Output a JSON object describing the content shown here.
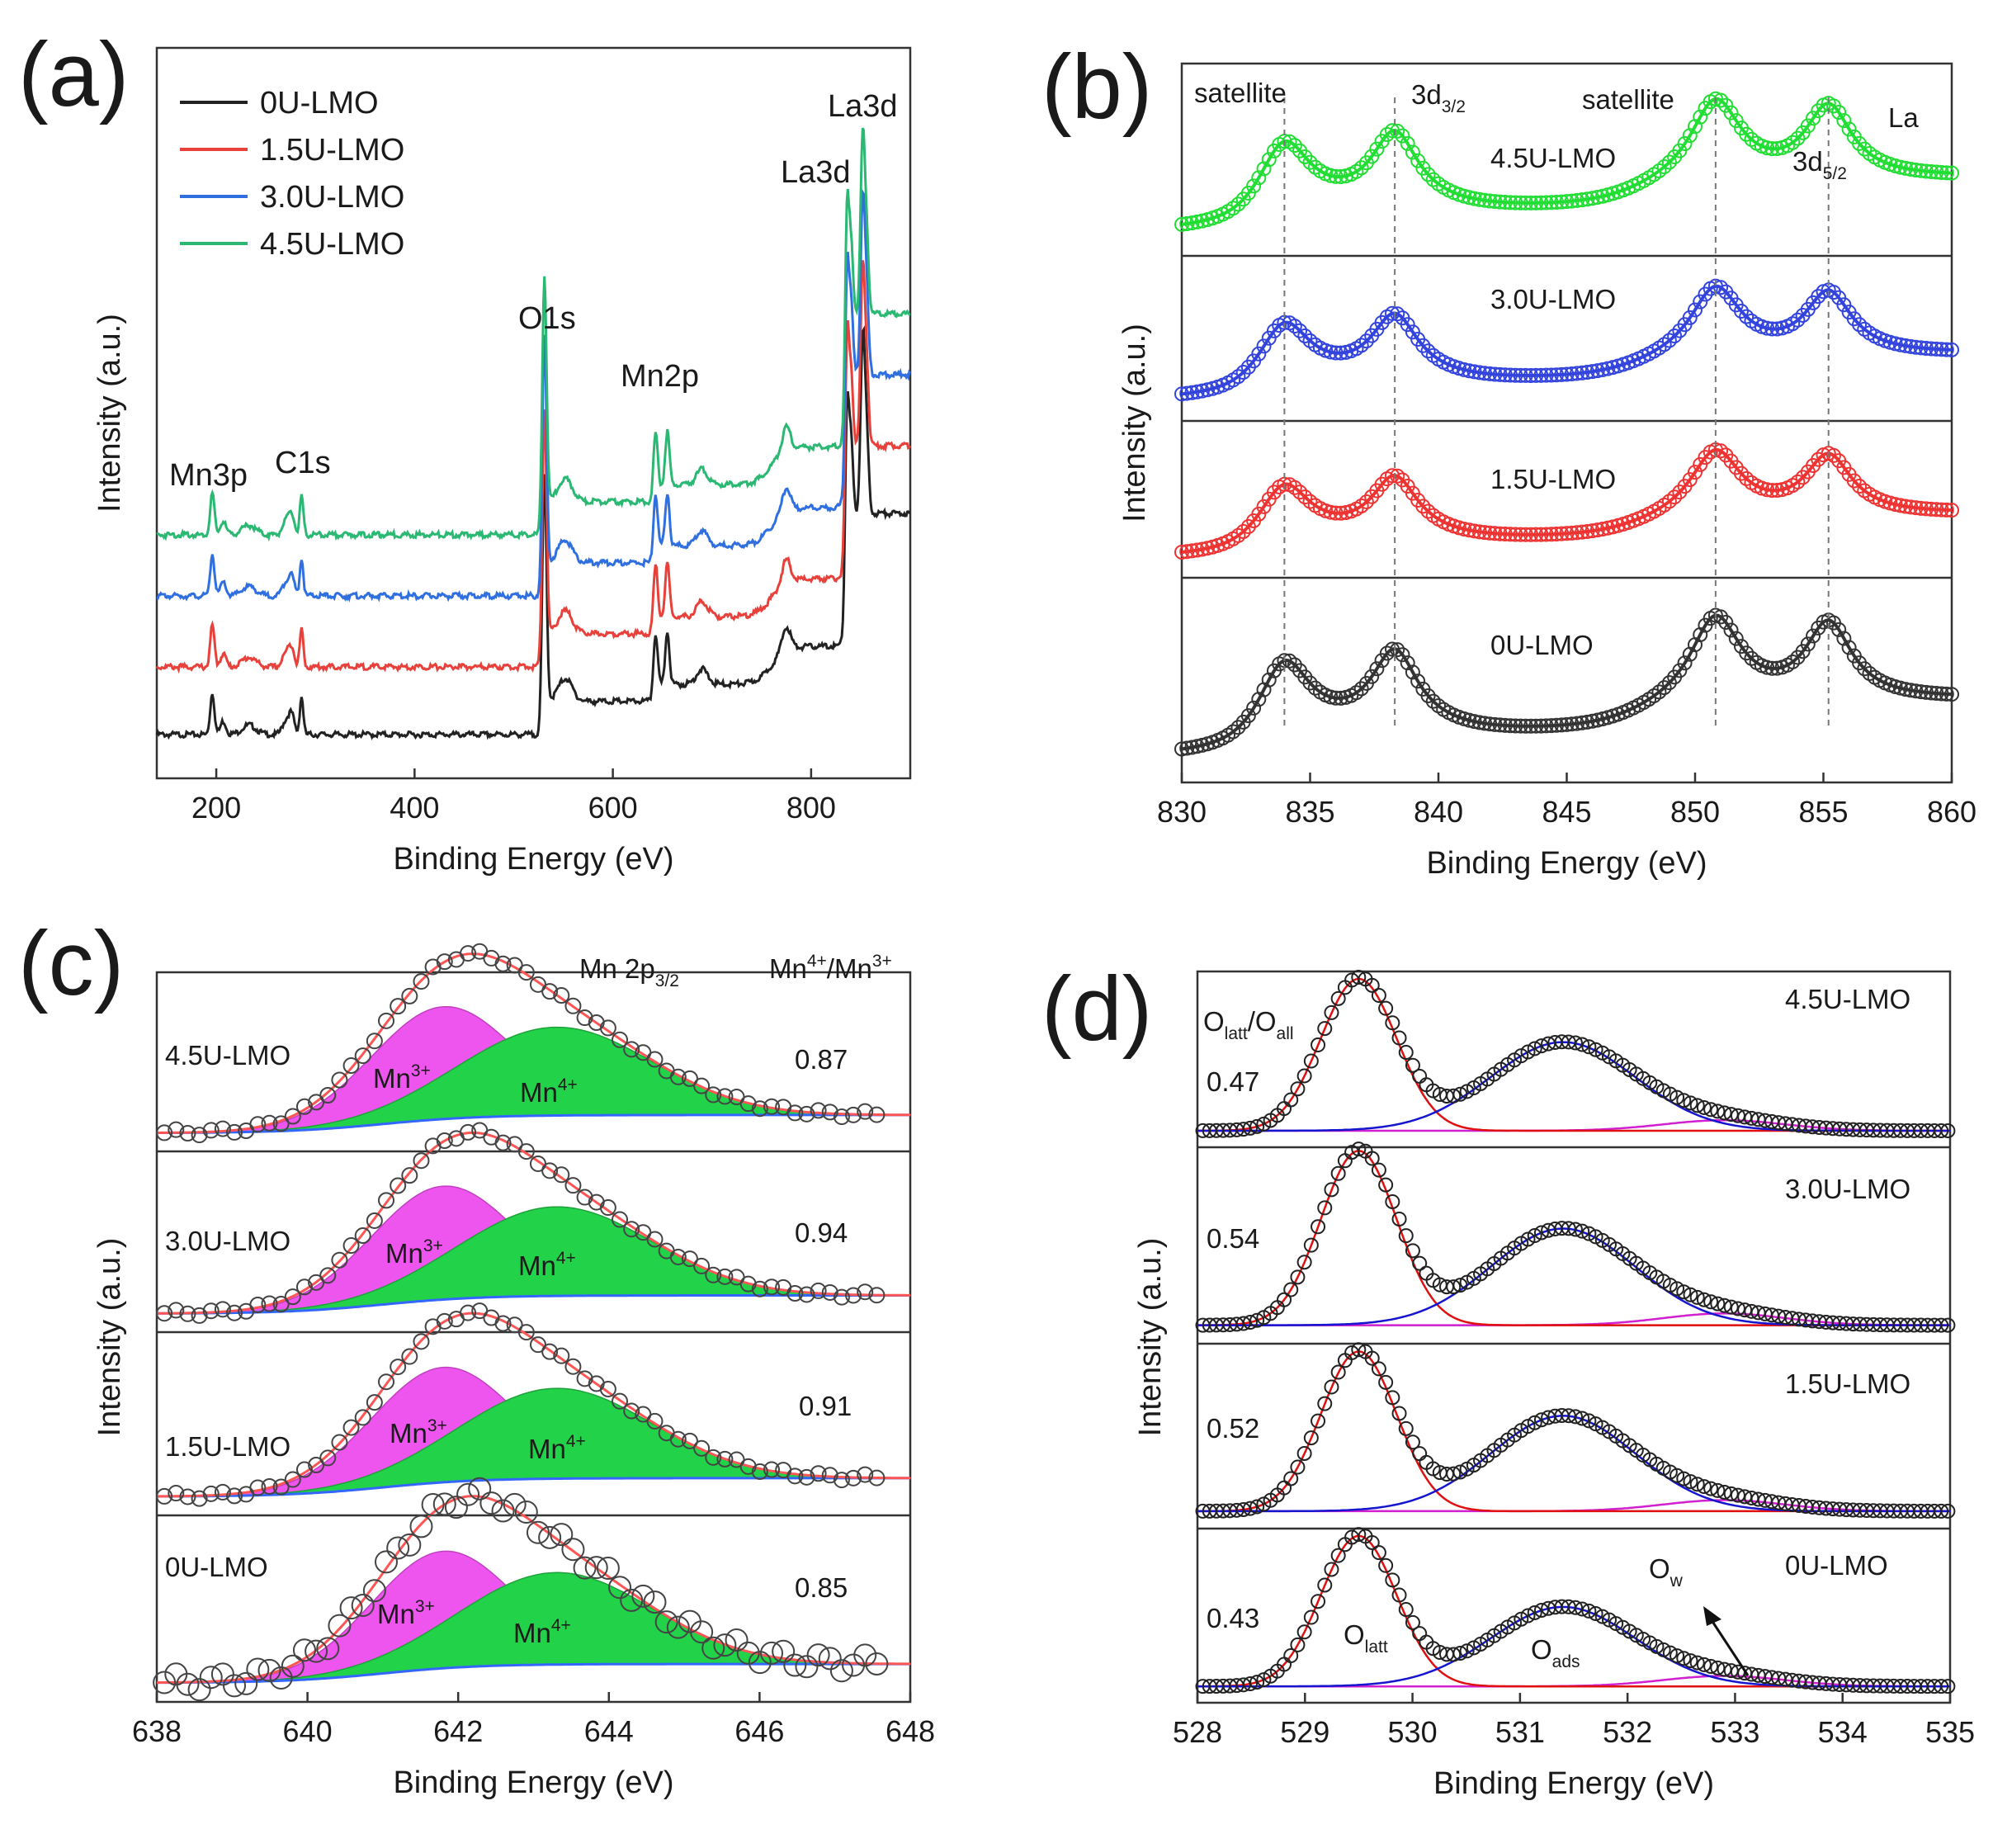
{
  "colors": {
    "s0": "#222222",
    "s1": "#e8413b",
    "s2": "#2f6fe0",
    "s3": "#2ab873",
    "b_s0": "#333333",
    "b_s1": "#ee3333",
    "b_s2": "#3344dd",
    "b_s3": "#22dd33",
    "mn3": "#ee55ee",
    "mn4": "#22d34a",
    "olatt": "#e01010",
    "oads": "#1515d0",
    "ow": "#d020d0"
  },
  "chart_data": [
    {
      "id": "a",
      "panel_label": "(a)",
      "type": "line",
      "xlabel": "Binding Energy (eV)",
      "ylabel": "Intensity (a.u.)",
      "xlim": [
        140,
        900
      ],
      "x_ticks": [
        200,
        400,
        600,
        800
      ],
      "series": [
        {
          "name": "0U-LMO",
          "offset": 0
        },
        {
          "name": "1.5U-LMO",
          "offset": 1
        },
        {
          "name": "3.0U-LMO",
          "offset": 2
        },
        {
          "name": "4.5U-LMO",
          "offset": 3
        }
      ],
      "peaks_eV": [
        {
          "label": "Mn3p",
          "x": 196
        },
        {
          "label": "C1s",
          "x": 286
        },
        {
          "label": "O1s",
          "x": 531
        },
        {
          "label": "Mn2p",
          "x": 643
        },
        {
          "label": "La3d",
          "x": 836
        },
        {
          "label": "La3d",
          "x": 852
        }
      ]
    },
    {
      "id": "b",
      "panel_label": "(b)",
      "type": "scatter",
      "xlabel": "Binding Energy (eV)",
      "ylabel": "Intensity (a.u.)",
      "xlim": [
        830,
        860
      ],
      "x_ticks": [
        830,
        835,
        840,
        845,
        850,
        855,
        860
      ],
      "series": [
        {
          "name": "4.5U-LMO"
        },
        {
          "name": "3.0U-LMO"
        },
        {
          "name": "1.5U-LMO"
        },
        {
          "name": "0U-LMO"
        }
      ],
      "peak_positions_eV": [
        834.0,
        838.3,
        850.8,
        855.2
      ],
      "annotations": {
        "sat1": "satellite",
        "d32": "3d",
        "d32sub": "3/2",
        "sat2": "satellite",
        "la": "La",
        "d52": "3d",
        "d52sub": "5/2"
      }
    },
    {
      "id": "c",
      "panel_label": "(c)",
      "type": "area",
      "xlabel": "Binding Energy (eV)",
      "ylabel": "Intensity (a.u.)",
      "xlim": [
        638,
        648
      ],
      "x_ticks": [
        638,
        640,
        642,
        644,
        646,
        648
      ],
      "header": {
        "mn2p": "Mn 2p",
        "mn2p_sub": "3/2",
        "ratio_a": "Mn",
        "ratio_a_sup": "4+",
        "ratio_sep": "/Mn",
        "ratio_b_sup": "3+"
      },
      "components": [
        {
          "name": "Mn",
          "sup": "3+",
          "center": 641.8
        },
        {
          "name": "Mn",
          "sup": "4+",
          "center": 643.3
        }
      ],
      "series": [
        {
          "name": "4.5U-LMO",
          "ratio": "0.87"
        },
        {
          "name": "3.0U-LMO",
          "ratio": "0.94"
        },
        {
          "name": "1.5U-LMO",
          "ratio": "0.91"
        },
        {
          "name": "0U-LMO",
          "ratio": "0.85"
        }
      ]
    },
    {
      "id": "d",
      "panel_label": "(d)",
      "type": "line",
      "xlabel": "Binding Energy (eV)",
      "ylabel": "Intensity (a.u.)",
      "xlim": [
        528,
        535
      ],
      "x_ticks": [
        528,
        529,
        530,
        531,
        532,
        533,
        534,
        535
      ],
      "header": {
        "o": "O",
        "latt": "latt",
        "slash": "/O",
        "all": "all"
      },
      "components": {
        "olatt": {
          "main": "O",
          "sub": "latt",
          "center": 529.5
        },
        "oads": {
          "main": "O",
          "sub": "ads",
          "center": 531.4
        },
        "ow": {
          "main": "O",
          "sub": "w",
          "center": 532.9
        }
      },
      "series": [
        {
          "name": "4.5U-LMO",
          "ratio": "0.47"
        },
        {
          "name": "3.0U-LMO",
          "ratio": "0.54"
        },
        {
          "name": "1.5U-LMO",
          "ratio": "0.52"
        },
        {
          "name": "0U-LMO",
          "ratio": "0.43"
        }
      ]
    }
  ]
}
